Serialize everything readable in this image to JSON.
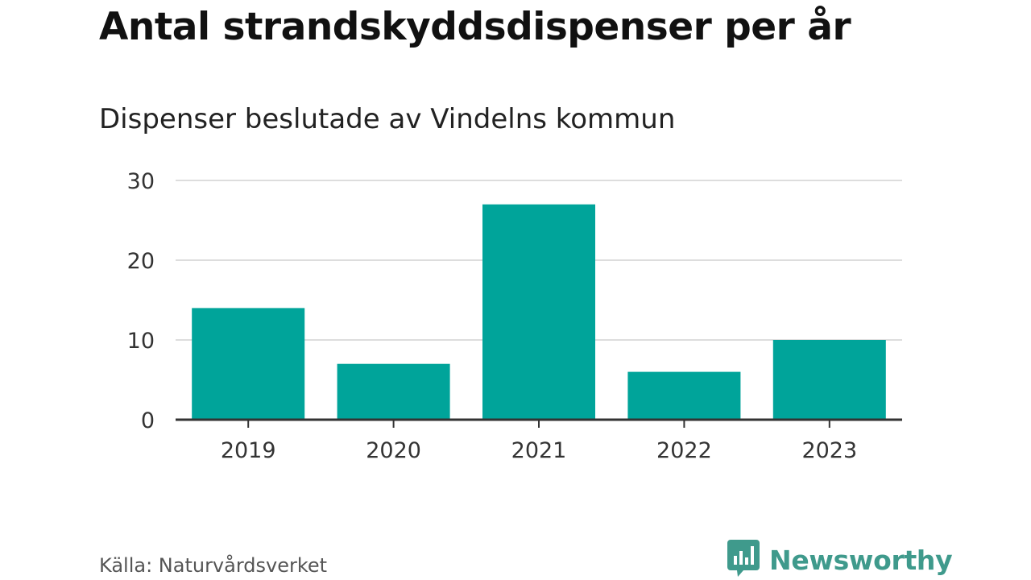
{
  "chart_data": {
    "type": "bar",
    "title": "Antal strandskyddsdispenser per år",
    "subtitle": "Dispenser beslutade av Vindelns kommun",
    "categories": [
      "2019",
      "2020",
      "2021",
      "2022",
      "2023"
    ],
    "values": [
      14,
      7,
      27,
      6,
      10
    ],
    "yticks": [
      "0",
      "10",
      "20",
      "30"
    ],
    "ylim": [
      0,
      30
    ],
    "xlabel": "",
    "ylabel": "",
    "grid": true,
    "legend": "none"
  },
  "colors": {
    "bar": "#00a49a",
    "grid": "#dddddd",
    "axis": "#333333",
    "brand": "#3f9a8c"
  },
  "source": "Källa: Naturvårdsverket",
  "brand": {
    "name": "Newsworthy",
    "icon": "bar-chart-speech-bubble-icon"
  }
}
